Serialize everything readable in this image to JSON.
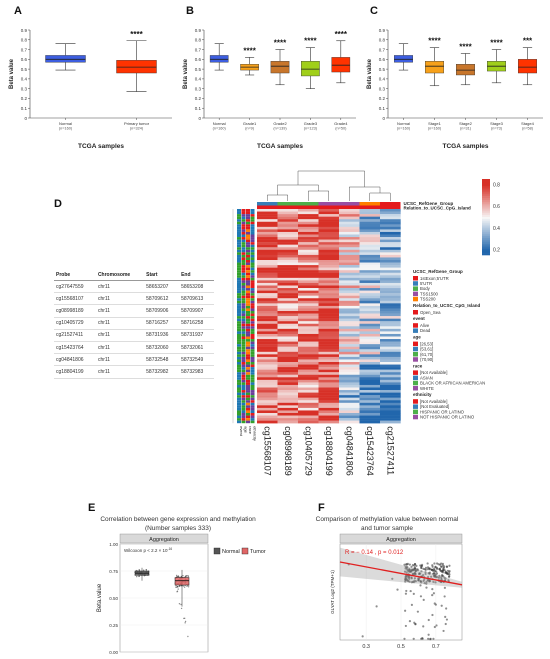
{
  "panels": {
    "A": "A",
    "B": "B",
    "C": "C",
    "D": "D",
    "E": "E",
    "F": "F"
  },
  "chart_data": [
    {
      "id": "A",
      "type": "box",
      "ylabel": "Beta value",
      "xlabel": "TCGA samples",
      "ylim": [
        0,
        0.9
      ],
      "yticks": [
        "0",
        "0.1",
        "0.2",
        "0.3",
        "0.4",
        "0.5",
        "0.6",
        "0.7",
        "0.8",
        "0.9"
      ],
      "boxes": [
        {
          "label": "Normal",
          "n": "(n=160)",
          "min": 0.49,
          "q1": 0.57,
          "median": 0.6,
          "q3": 0.64,
          "max": 0.76,
          "color": "#3D5EE0"
        },
        {
          "label": "Primary tumor",
          "n": "(n=324)",
          "min": 0.27,
          "q1": 0.46,
          "median": 0.52,
          "q3": 0.59,
          "max": 0.79,
          "color": "#FF3300"
        }
      ],
      "sig": [
        {
          "index": 1,
          "text": "****"
        }
      ]
    },
    {
      "id": "B",
      "type": "box",
      "ylabel": "Beta value",
      "xlabel": "TCGA samples",
      "ylim": [
        0,
        0.9
      ],
      "yticks": [
        "0",
        "0.1",
        "0.2",
        "0.3",
        "0.4",
        "0.5",
        "0.6",
        "0.7",
        "0.8",
        "0.9"
      ],
      "boxes": [
        {
          "label": "Normal",
          "n": "(n=160)",
          "min": 0.49,
          "q1": 0.57,
          "median": 0.6,
          "q3": 0.64,
          "max": 0.76,
          "color": "#3D5EE0"
        },
        {
          "label": "Grade1",
          "n": "(n=9)",
          "min": 0.44,
          "q1": 0.49,
          "median": 0.52,
          "q3": 0.55,
          "max": 0.62,
          "color": "#F7A11A"
        },
        {
          "label": "Grade2",
          "n": "(n=139)",
          "min": 0.34,
          "q1": 0.46,
          "median": 0.53,
          "q3": 0.58,
          "max": 0.7,
          "color": "#C8762B"
        },
        {
          "label": "Grade3",
          "n": "(n=123)",
          "min": 0.3,
          "q1": 0.43,
          "median": 0.5,
          "q3": 0.58,
          "max": 0.72,
          "color": "#A0CF1A"
        },
        {
          "label": "Grade4",
          "n": "(n=50)",
          "min": 0.36,
          "q1": 0.47,
          "median": 0.54,
          "q3": 0.62,
          "max": 0.79,
          "color": "#FF3300"
        }
      ],
      "sig": [
        {
          "index": 1,
          "text": "****"
        },
        {
          "index": 2,
          "text": "****"
        },
        {
          "index": 3,
          "text": "****"
        },
        {
          "index": 4,
          "text": "****"
        }
      ]
    },
    {
      "id": "C",
      "type": "box",
      "ylabel": "Beta value",
      "xlabel": "TCGA samples",
      "ylim": [
        0,
        0.9
      ],
      "yticks": [
        "0",
        "0.1",
        "0.2",
        "0.3",
        "0.4",
        "0.5",
        "0.6",
        "0.7",
        "0.8",
        "0.9"
      ],
      "boxes": [
        {
          "label": "Normal",
          "n": "(n=160)",
          "min": 0.49,
          "q1": 0.57,
          "median": 0.6,
          "q3": 0.64,
          "max": 0.76,
          "color": "#3D5EE0"
        },
        {
          "label": "Stage1",
          "n": "(n=160)",
          "min": 0.33,
          "q1": 0.46,
          "median": 0.53,
          "q3": 0.58,
          "max": 0.72,
          "color": "#F7A11A"
        },
        {
          "label": "Stage2",
          "n": "(n=31)",
          "min": 0.34,
          "q1": 0.44,
          "median": 0.49,
          "q3": 0.55,
          "max": 0.66,
          "color": "#C8762B"
        },
        {
          "label": "Stage3",
          "n": "(n=73)",
          "min": 0.36,
          "q1": 0.48,
          "median": 0.53,
          "q3": 0.58,
          "max": 0.7,
          "color": "#A0CF1A"
        },
        {
          "label": "Stage4",
          "n": "(n=58)",
          "min": 0.34,
          "q1": 0.46,
          "median": 0.52,
          "q3": 0.6,
          "max": 0.72,
          "color": "#FF3300"
        }
      ],
      "sig": [
        {
          "index": 1,
          "text": "****"
        },
        {
          "index": 2,
          "text": "****"
        },
        {
          "index": 3,
          "text": "****"
        },
        {
          "index": 4,
          "text": "***"
        }
      ]
    },
    {
      "id": "D",
      "type": "heatmap",
      "columns": [
        "cg15568107",
        "cg08998189",
        "cg10405729",
        "cg18804199",
        "cg04841806",
        "cg15423764",
        "cg21527411"
      ],
      "col_annotations": [
        "UCSC_RefGene_Group",
        "Relation_to_UCSC_CpG_Island"
      ],
      "row_annotations": [
        "event",
        "age",
        "race",
        "ethnicity"
      ],
      "scale": {
        "min": 0.2,
        "max": 0.8,
        "ticks": [
          "0.8",
          "0.6",
          "0.4",
          "0.2"
        ],
        "colors": [
          "#2166AC",
          "#F7F7F7",
          "#D73027"
        ]
      },
      "column_means": [
        0.72,
        0.7,
        0.69,
        0.74,
        0.52,
        0.42,
        0.38
      ],
      "legend": [
        {
          "title": "UCSC_RefGene_Group",
          "items": [
            {
              "label": "1stExon;5'UTR",
              "color": "#E41A1C"
            },
            {
              "label": "5'UTR",
              "color": "#377EB8"
            },
            {
              "label": "Body",
              "color": "#4DAF4A"
            },
            {
              "label": "TSS1500",
              "color": "#984EA3"
            },
            {
              "label": "TSS200",
              "color": "#FF7F00"
            }
          ]
        },
        {
          "title": "Relation_to_UCSC_CpG_Island",
          "items": [
            {
              "label": "Open_Sea",
              "color": "#E41A1C"
            }
          ]
        },
        {
          "title": "event",
          "items": [
            {
              "label": "Alive",
              "color": "#E41A1C"
            },
            {
              "label": "Dead",
              "color": "#377EB8"
            }
          ]
        },
        {
          "title": "age",
          "items": [
            {
              "label": "[26,53]",
              "color": "#E41A1C"
            },
            {
              "label": "(53,61]",
              "color": "#377EB8"
            },
            {
              "label": "(61,70]",
              "color": "#4DAF4A"
            },
            {
              "label": "(70,90]",
              "color": "#984EA3"
            }
          ]
        },
        {
          "title": "race",
          "items": [
            {
              "label": "[Not Available]",
              "color": "#E41A1C"
            },
            {
              "label": "ASIAN",
              "color": "#377EB8"
            },
            {
              "label": "BLACK OR AFRICAN AMERICAN",
              "color": "#4DAF4A"
            },
            {
              "label": "WHITE",
              "color": "#984EA3"
            }
          ]
        },
        {
          "title": "ethnicity",
          "items": [
            {
              "label": "[Not Available]",
              "color": "#E41A1C"
            },
            {
              "label": "[Not Evaluated]",
              "color": "#377EB8"
            },
            {
              "label": "HISPANIC OR LATINO",
              "color": "#4DAF4A"
            },
            {
              "label": "NOT HISPANIC OR LATINO",
              "color": "#984EA3"
            }
          ]
        }
      ],
      "table": {
        "headers": [
          "Probe",
          "Chromosome",
          "Start",
          "End"
        ],
        "rows": [
          [
            "cg27647559",
            "chr11",
            "58653207",
            "58653208"
          ],
          [
            "cg15568107",
            "chr11",
            "58709612",
            "58709613"
          ],
          [
            "cg08998189",
            "chr11",
            "58709906",
            "58709907"
          ],
          [
            "cg10405729",
            "chr11",
            "58716257",
            "58716258"
          ],
          [
            "cg21527411",
            "chr11",
            "58731936",
            "58731937"
          ],
          [
            "cg15423764",
            "chr11",
            "58732060",
            "58732061"
          ],
          [
            "cg04841806",
            "chr11",
            "58732548",
            "58732549"
          ],
          [
            "cg18804199",
            "chr11",
            "58732982",
            "58732983"
          ]
        ]
      }
    },
    {
      "id": "E",
      "type": "box",
      "title": "Correlation between gene expression and methylation (Number samples 333)",
      "strip": "Aggregation",
      "annotation": "Wilcoxon p < 2.2 × 10",
      "annotation_exp": "-16",
      "ylabel": "Beta.value",
      "ylim": [
        0,
        1.0
      ],
      "yticks": [
        "0.00",
        "0.25",
        "0.50",
        "0.75",
        "1.00"
      ],
      "legend": [
        "Normal",
        "Tumor"
      ],
      "boxes": [
        {
          "label": "Normal",
          "min": 0.66,
          "q1": 0.71,
          "median": 0.73,
          "q3": 0.75,
          "max": 0.78,
          "color": "#555555"
        },
        {
          "label": "Tumor",
          "min": 0.42,
          "q1": 0.62,
          "median": 0.66,
          "q3": 0.69,
          "max": 0.76,
          "color": "#E06666"
        }
      ]
    },
    {
      "id": "F",
      "type": "scatter",
      "title": "Comparison of methylation value between normal and tumor sample",
      "strip": "Aggregation",
      "annotation": "R = − 0.14 , p = 0.012",
      "ylabel": "GLYAT Log2 (TPM+1)",
      "xticks": [
        "0.3",
        "0.5",
        "0.7"
      ],
      "xlim": [
        0.15,
        0.85
      ],
      "ylim": [
        0,
        8
      ],
      "fit": {
        "x0": 0.15,
        "y0": 6.5,
        "x1": 0.85,
        "y1": 4.6
      }
    }
  ]
}
